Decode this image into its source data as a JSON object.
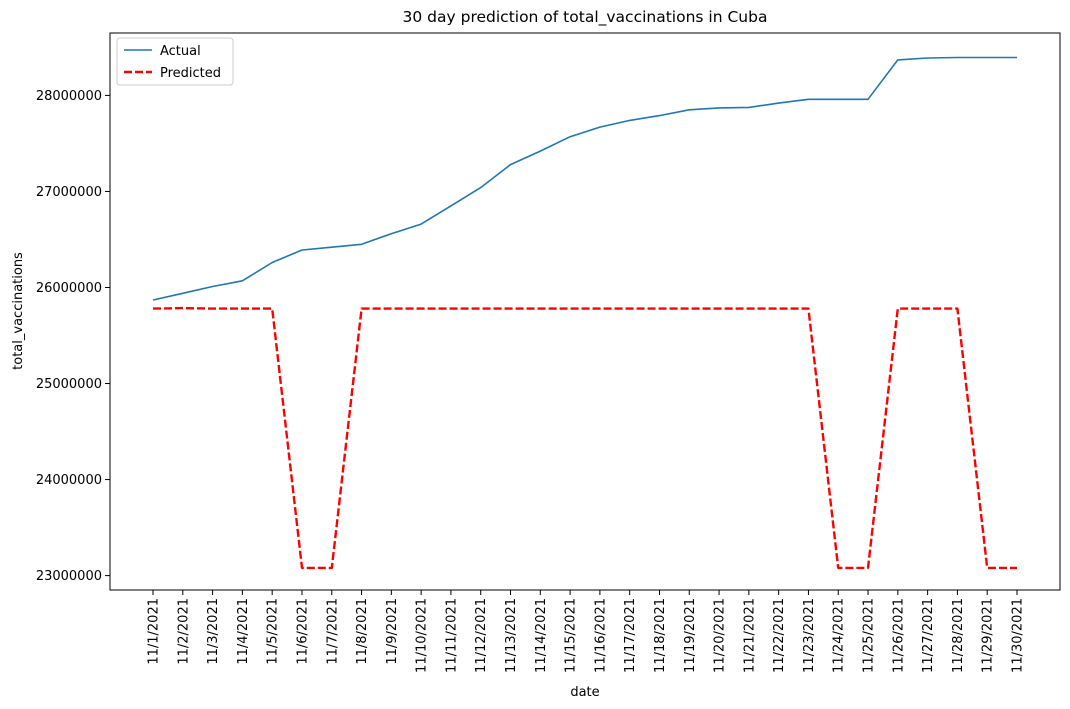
{
  "chart_data": {
    "type": "line",
    "title": "30 day prediction of total_vaccinations in Cuba",
    "xlabel": "date",
    "ylabel": "total_vaccinations",
    "categories": [
      "11/1/2021",
      "11/2/2021",
      "11/3/2021",
      "11/4/2021",
      "11/5/2021",
      "11/6/2021",
      "11/7/2021",
      "11/8/2021",
      "11/9/2021",
      "11/10/2021",
      "11/11/2021",
      "11/12/2021",
      "11/13/2021",
      "11/14/2021",
      "11/15/2021",
      "11/16/2021",
      "11/17/2021",
      "11/18/2021",
      "11/19/2021",
      "11/20/2021",
      "11/21/2021",
      "11/22/2021",
      "11/23/2021",
      "11/24/2021",
      "11/25/2021",
      "11/26/2021",
      "11/27/2021",
      "11/28/2021",
      "11/29/2021",
      "11/30/2021"
    ],
    "ylim": [
      22850000,
      28650000
    ],
    "yticks": [
      23000000,
      24000000,
      25000000,
      26000000,
      27000000,
      28000000
    ],
    "ytick_labels": [
      "23000000",
      "24000000",
      "25000000",
      "26000000",
      "27000000",
      "28000000"
    ],
    "legend_position": "top-left",
    "grid": false,
    "series": [
      {
        "name": "Actual",
        "color": "#1f77b4",
        "style": "solid",
        "values": [
          25870000,
          25940000,
          26010000,
          26070000,
          26260000,
          26390000,
          26420000,
          26450000,
          26560000,
          26660000,
          26850000,
          27040000,
          27280000,
          27420000,
          27570000,
          27670000,
          27740000,
          27790000,
          27850000,
          27870000,
          27875000,
          27920000,
          27960000,
          27960000,
          27960000,
          28370000,
          28390000,
          28395000,
          28395000,
          28395000
        ]
      },
      {
        "name": "Predicted",
        "color": "#ff0000",
        "style": "dashed",
        "values": [
          25780000,
          25785000,
          25780000,
          25780000,
          25780000,
          23080000,
          23080000,
          25780000,
          25780000,
          25780000,
          25780000,
          25780000,
          25780000,
          25780000,
          25780000,
          25780000,
          25780000,
          25780000,
          25780000,
          25780000,
          25780000,
          25780000,
          25780000,
          23080000,
          23080000,
          25780000,
          25780000,
          25780000,
          23080000,
          23080000
        ]
      }
    ]
  }
}
